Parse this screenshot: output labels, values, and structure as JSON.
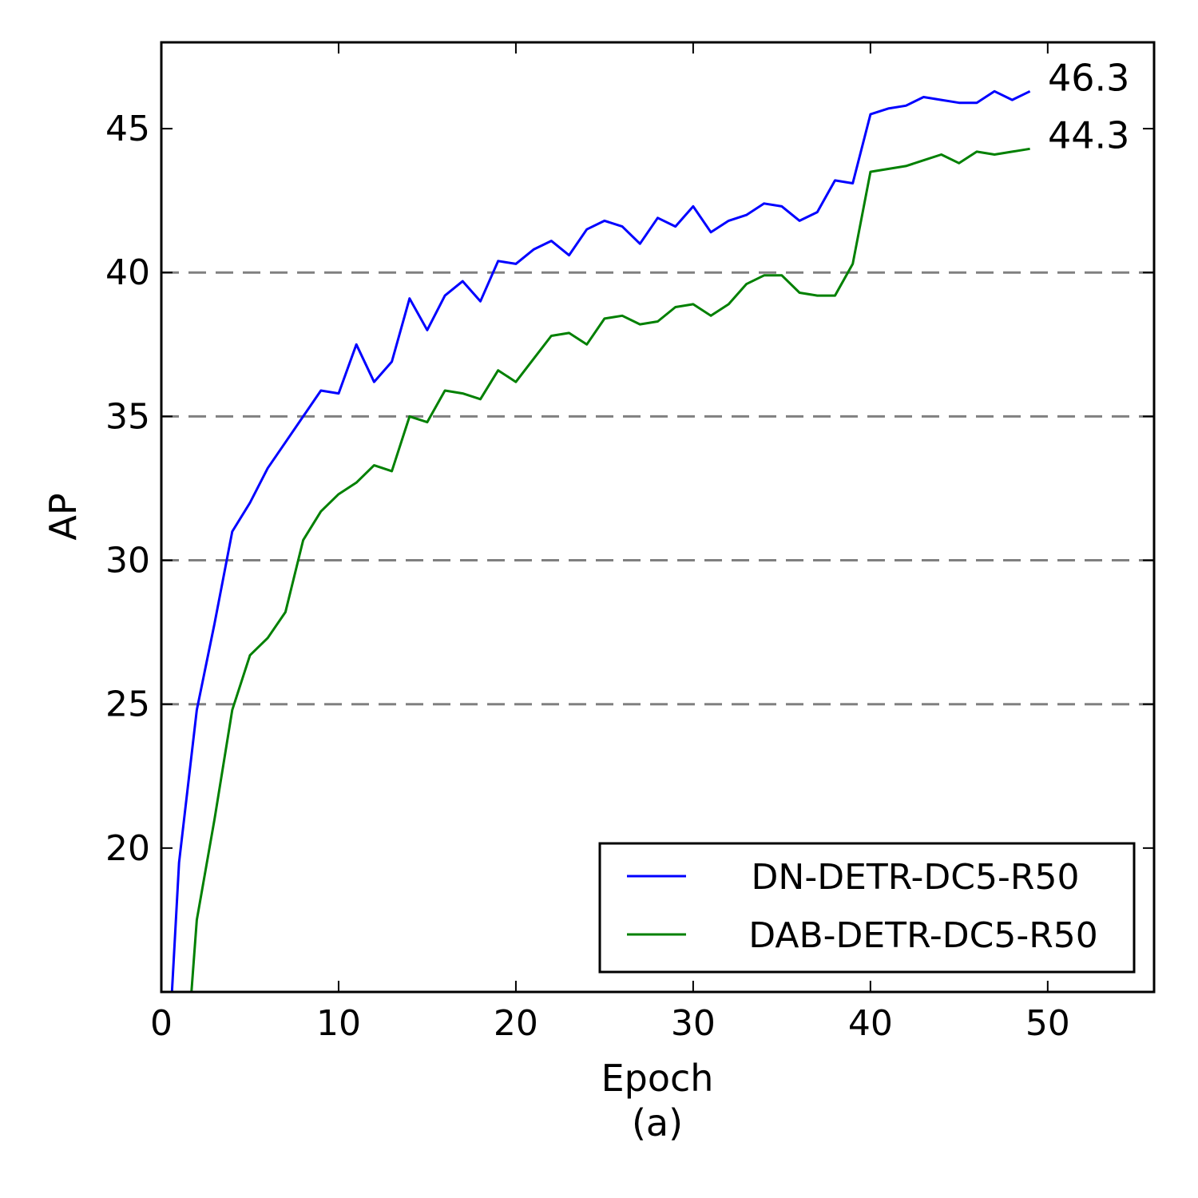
{
  "chart_data": {
    "type": "line",
    "xlabel": "Epoch",
    "caption": "(a)",
    "ylabel": "AP",
    "xlim": [
      0,
      56
    ],
    "ylim": [
      15,
      48
    ],
    "xticks": [
      0,
      10,
      20,
      30,
      40,
      50
    ],
    "yticks": [
      20,
      25,
      30,
      35,
      40,
      45
    ],
    "grid": {
      "horizontal_dashed_at": [
        25,
        30,
        35,
        40
      ]
    },
    "legend": {
      "placement": "lower-right"
    },
    "end_labels": [
      {
        "text": "46.3",
        "series": 0
      },
      {
        "text": "44.3",
        "series": 1
      }
    ],
    "series": [
      {
        "name": "DN-DETR-DC5-R50",
        "color": "#0000ff",
        "x": [
          0.6,
          1,
          2,
          3,
          4,
          5,
          6,
          7,
          8,
          9,
          10,
          11,
          12,
          13,
          14,
          15,
          16,
          17,
          18,
          19,
          20,
          21,
          22,
          23,
          24,
          25,
          26,
          27,
          28,
          29,
          30,
          31,
          32,
          33,
          34,
          35,
          36,
          37,
          38,
          39,
          40,
          41,
          42,
          43,
          44,
          45,
          46,
          47,
          48,
          49
        ],
        "y": [
          15.0,
          19.5,
          24.8,
          27.8,
          31.0,
          32.0,
          33.2,
          34.1,
          35.0,
          35.9,
          35.8,
          37.5,
          36.2,
          36.9,
          39.1,
          38.0,
          39.2,
          39.7,
          39.0,
          40.4,
          40.3,
          40.8,
          41.1,
          40.6,
          41.5,
          41.8,
          41.6,
          41.0,
          41.9,
          41.6,
          42.3,
          41.4,
          41.8,
          42.0,
          42.4,
          42.3,
          41.8,
          42.1,
          43.2,
          43.1,
          45.5,
          45.7,
          45.8,
          46.1,
          46.0,
          45.9,
          45.9,
          46.3,
          46.0,
          46.3
        ]
      },
      {
        "name": "DAB-DETR-DC5-R50",
        "color": "#008000",
        "x": [
          1.7,
          2,
          3,
          4,
          5,
          6,
          7,
          8,
          9,
          10,
          11,
          12,
          13,
          14,
          15,
          16,
          17,
          18,
          19,
          20,
          21,
          22,
          23,
          24,
          25,
          26,
          27,
          28,
          29,
          30,
          31,
          32,
          33,
          34,
          35,
          36,
          37,
          38,
          39,
          40,
          41,
          42,
          43,
          44,
          45,
          46,
          47,
          48,
          49
        ],
        "y": [
          15.0,
          17.5,
          21.0,
          24.8,
          26.7,
          27.3,
          28.2,
          30.7,
          31.7,
          32.3,
          32.7,
          33.3,
          33.1,
          35.0,
          34.8,
          35.9,
          35.8,
          35.6,
          36.6,
          36.2,
          37.0,
          37.8,
          37.9,
          37.5,
          38.4,
          38.5,
          38.2,
          38.3,
          38.8,
          38.9,
          38.5,
          38.9,
          39.6,
          39.9,
          39.9,
          39.3,
          39.2,
          39.2,
          40.3,
          43.5,
          43.6,
          43.7,
          43.9,
          44.1,
          43.8,
          44.2,
          44.1,
          44.2,
          44.3
        ]
      }
    ]
  }
}
